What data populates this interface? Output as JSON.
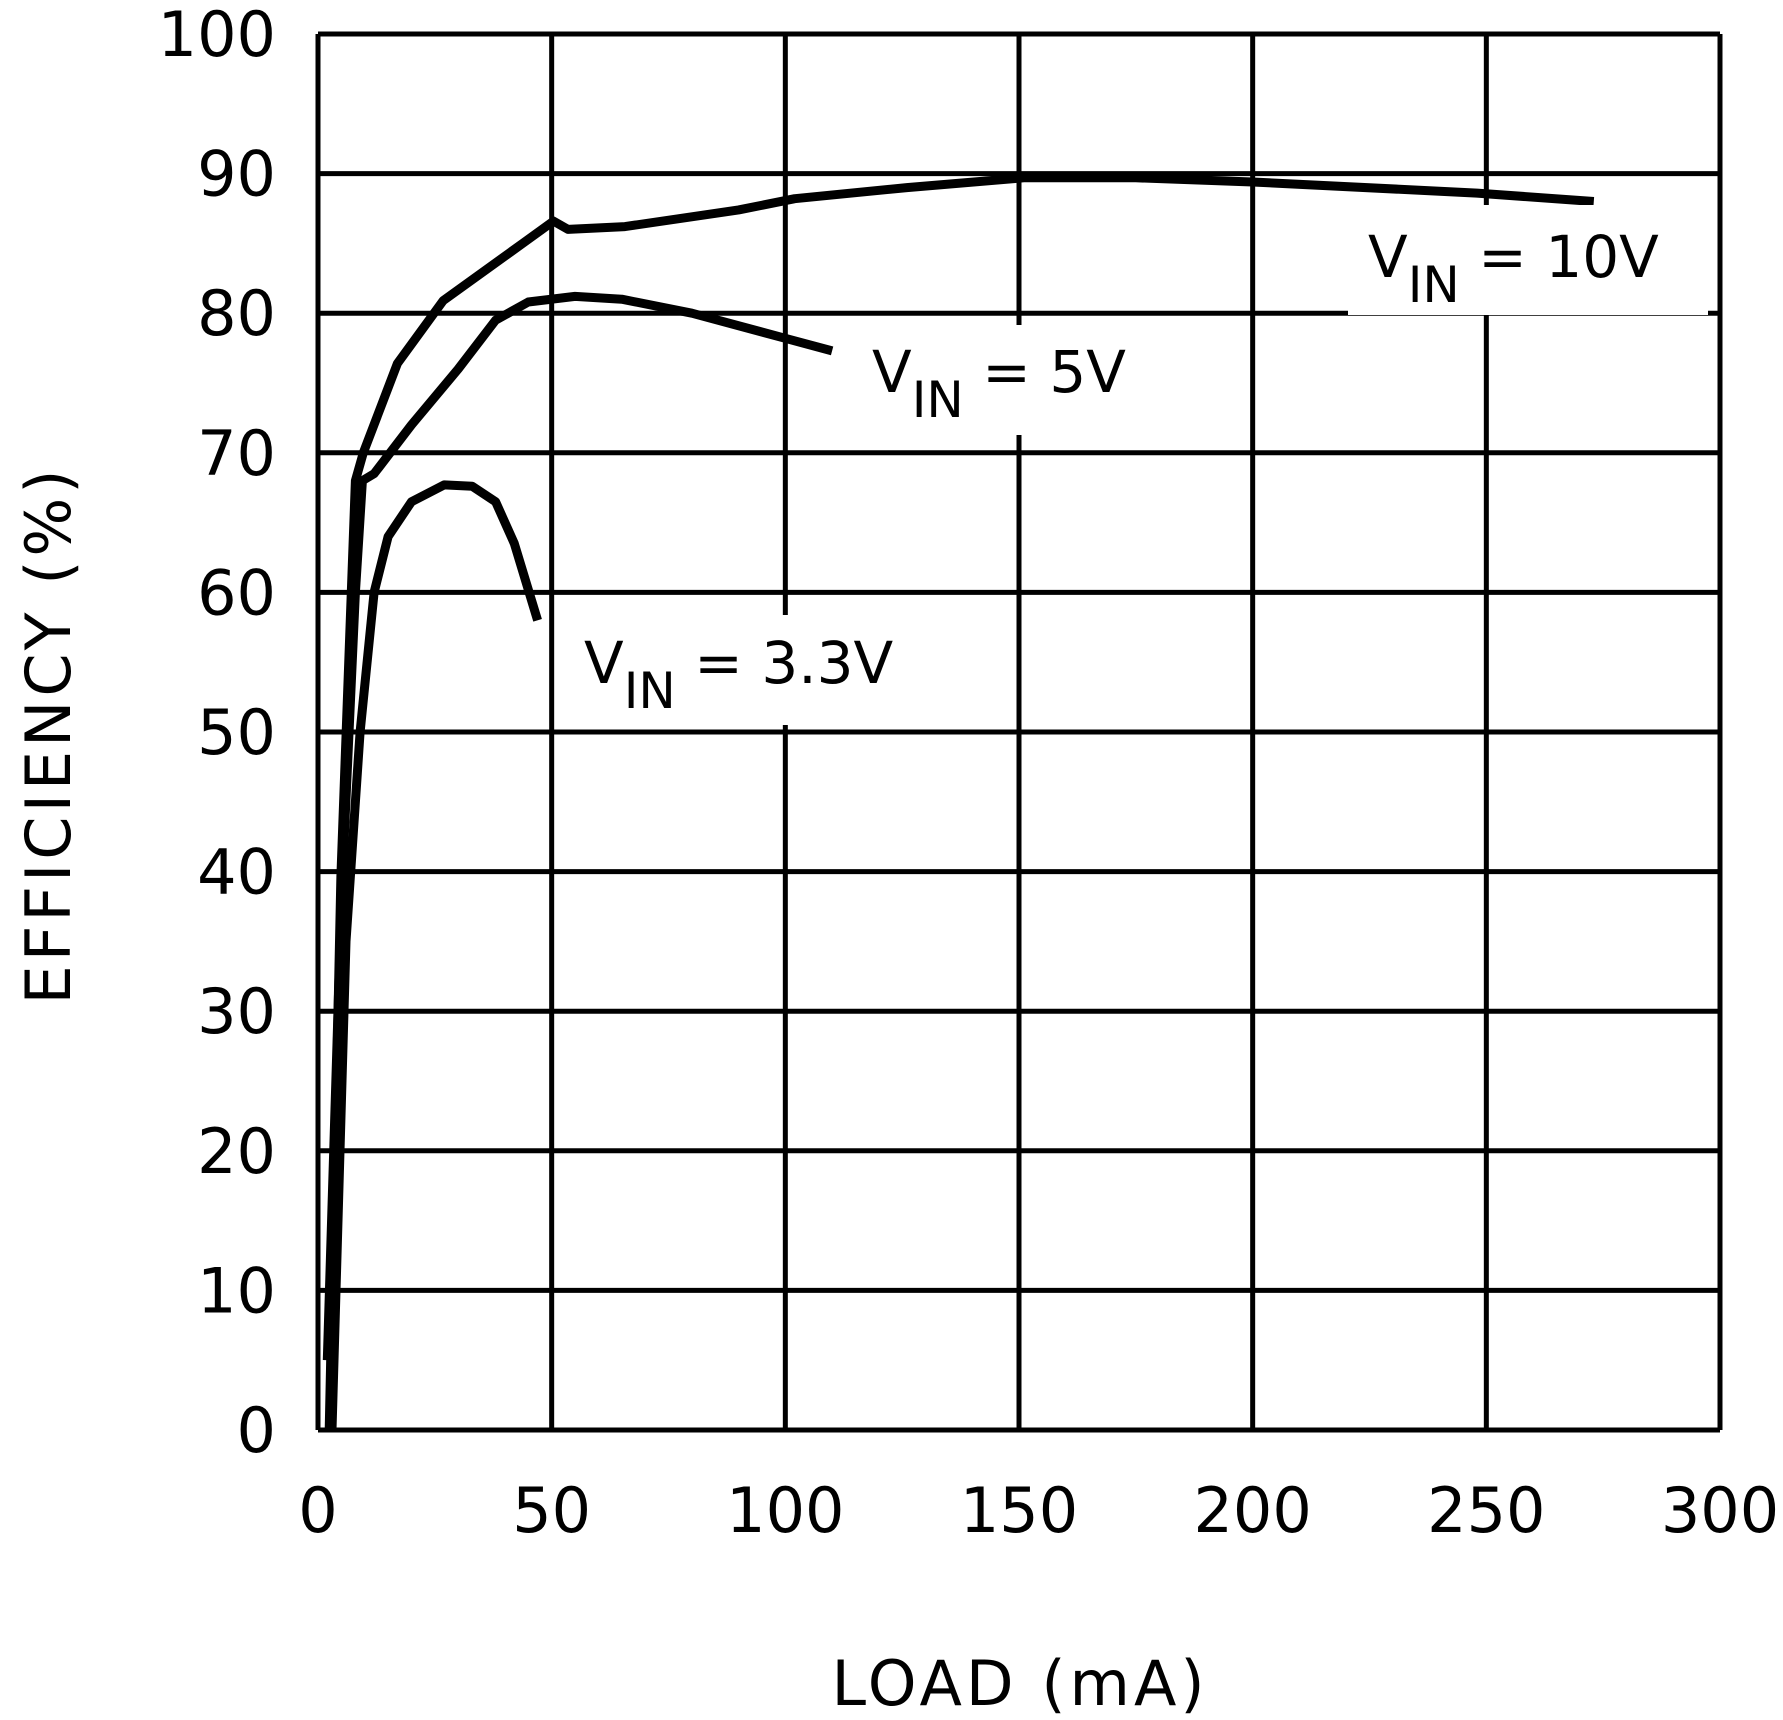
{
  "chart_data": {
    "type": "line",
    "title": "",
    "xlabel": "LOAD (mA)",
    "ylabel": "EFFICIENCY (%)",
    "xlim": [
      0,
      300
    ],
    "ylim": [
      0,
      100
    ],
    "xticks": [
      0,
      50,
      100,
      150,
      200,
      250,
      300
    ],
    "yticks": [
      0,
      10,
      20,
      30,
      40,
      50,
      60,
      70,
      80,
      90,
      100
    ],
    "grid": true,
    "line_color": "#000000",
    "series": [
      {
        "name": "VIN = 10V",
        "label_main": "V",
        "label_sub": "IN",
        "label_rest": " = 10V",
        "x": [
          2.4,
          4.9,
          8,
          9.7,
          17,
          26.8,
          43.8,
          50.4,
          53.5,
          65.7,
          90,
          102,
          126,
          151,
          175,
          200,
          248,
          273
        ],
        "y": [
          0,
          39.7,
          68,
          70,
          76.4,
          80.9,
          85,
          86.6,
          86,
          86.2,
          87.4,
          88.2,
          89,
          89.7,
          89.7,
          89.4,
          88.6,
          88
        ]
      },
      {
        "name": "VIN = 5V",
        "label_main": "V",
        "label_sub": "IN",
        "label_rest": " = 5V",
        "x": [
          2,
          5,
          8,
          9.5,
          12,
          20,
          30,
          38,
          45,
          55,
          65,
          80,
          100,
          110
        ],
        "y": [
          5,
          38,
          60,
          68,
          68.5,
          72,
          76,
          79.5,
          80.8,
          81.2,
          81,
          80,
          78.2,
          77.3
        ]
      },
      {
        "name": "VIN = 3.3V",
        "label_main": "V",
        "label_sub": "IN",
        "label_rest": " = 3.3V",
        "x": [
          3,
          6,
          9,
          12,
          15,
          20,
          27,
          33,
          38,
          42,
          47
        ],
        "y": [
          0,
          35,
          50,
          60,
          64,
          66.5,
          67.7,
          67.6,
          66.5,
          63.5,
          58
        ]
      }
    ]
  }
}
